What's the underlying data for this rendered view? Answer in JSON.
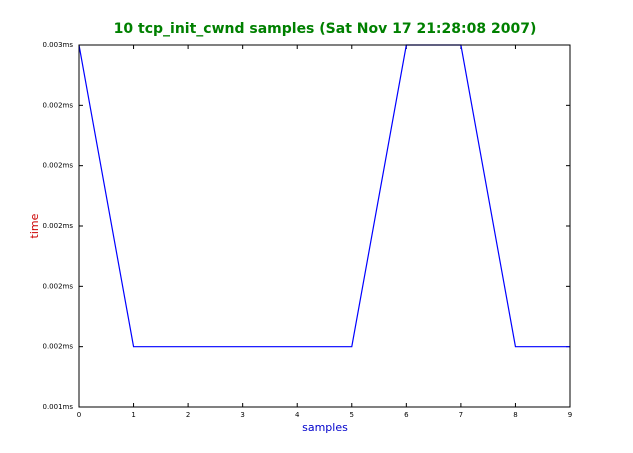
{
  "chart_data": {
    "type": "line",
    "title": "10 tcp_init_cwnd samples (Sat Nov 17 21:28:08 2007)",
    "xlabel": "samples",
    "ylabel": "time",
    "x": [
      0,
      1,
      2,
      3,
      4,
      5,
      6,
      7,
      8,
      9
    ],
    "series": [
      {
        "color": "#0000ff",
        "values": [
          0.0026,
          0.0016,
          0.0016,
          0.0016,
          0.0016,
          0.0016,
          0.0026,
          0.0026,
          0.0016,
          0.0016
        ]
      }
    ],
    "xlim": [
      0,
      9
    ],
    "xticks": [
      0,
      1,
      2,
      3,
      4,
      5,
      6,
      7,
      8,
      9
    ],
    "ylim": [
      0.0014,
      0.0026
    ],
    "yticks": [
      {
        "value": 0.0014,
        "label": "0.001ms"
      },
      {
        "value": 0.0016,
        "label": "0.002ms"
      },
      {
        "value": 0.0018,
        "label": "0.002ms"
      },
      {
        "value": 0.002,
        "label": "0.002ms"
      },
      {
        "value": 0.0022,
        "label": "0.002ms"
      },
      {
        "value": 0.0024,
        "label": "0.002ms"
      },
      {
        "value": 0.0026,
        "label": "0.003ms"
      }
    ],
    "title_color": "#008000",
    "xlabel_color": "#0000cc",
    "ylabel_color": "#cc0000"
  }
}
